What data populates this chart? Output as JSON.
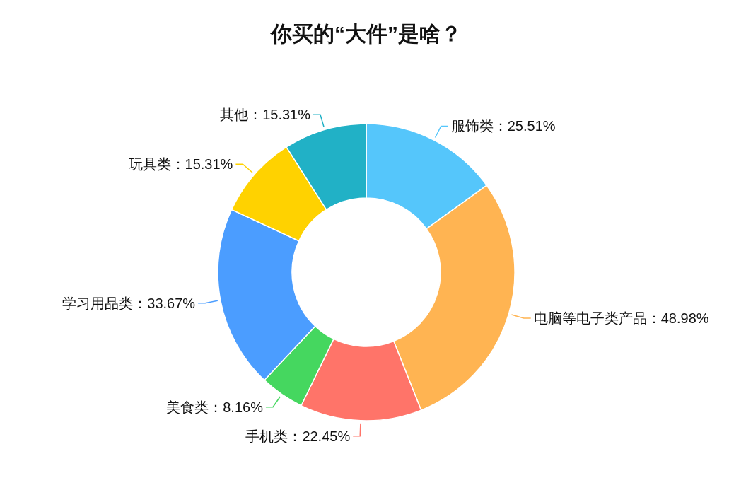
{
  "chart_data": {
    "type": "donut",
    "title": "你买的“大件”是啥？",
    "categories": [
      "服饰类",
      "电脑等电子类产品",
      "手机类",
      "美食类",
      "学习用品类",
      "玩具类",
      "其他"
    ],
    "values": [
      25.51,
      48.98,
      22.45,
      8.16,
      33.67,
      15.31,
      15.31
    ],
    "value_labels": [
      "25.51%",
      "48.98%",
      "22.45%",
      "8.16%",
      "33.67%",
      "15.31%",
      "15.31%"
    ],
    "colors": [
      "#55c6fb",
      "#ffb452",
      "#ff7469",
      "#45d75f",
      "#4b9dff",
      "#ffd200",
      "#21b1c6"
    ],
    "legend": false
  }
}
